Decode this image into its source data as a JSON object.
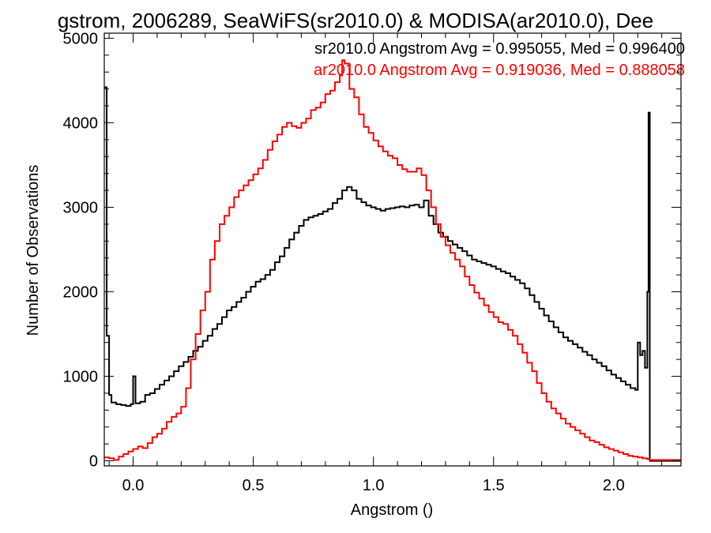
{
  "chart_data": {
    "type": "line",
    "title": "gstrom, 2006289, SeaWiFS(sr2010.0) & MODISA(ar2010.0), Dee",
    "xlabel": "Angstrom ()",
    "ylabel": "Number of Observations",
    "xlim": [
      -0.12,
      2.28
    ],
    "ylim": [
      -60,
      5060
    ],
    "x_ticks": [
      {
        "value": 0.0,
        "label": "0.0"
      },
      {
        "value": 0.5,
        "label": "0.5"
      },
      {
        "value": 1.0,
        "label": "1.0"
      },
      {
        "value": 1.5,
        "label": "1.5"
      },
      {
        "value": 2.0,
        "label": "2.0"
      }
    ],
    "y_ticks": [
      {
        "value": 0,
        "label": "0"
      },
      {
        "value": 1000,
        "label": "1000"
      },
      {
        "value": 2000,
        "label": "2000"
      },
      {
        "value": 3000,
        "label": "3000"
      },
      {
        "value": 4000,
        "label": "4000"
      },
      {
        "value": 5000,
        "label": "5000"
      }
    ],
    "grid": false,
    "legend_position": "top-right",
    "series": [
      {
        "name": "sr2010.0 Angstrom Avg = 0.995055, Med = 0.996400",
        "color": "#000000",
        "step": true,
        "points": [
          [
            -0.12,
            4420
          ],
          [
            -0.11,
            1480
          ],
          [
            -0.1,
            780
          ],
          [
            -0.09,
            690
          ],
          [
            -0.07,
            670
          ],
          [
            -0.05,
            660
          ],
          [
            -0.03,
            650
          ],
          [
            -0.01,
            670
          ],
          [
            0.0,
            1000
          ],
          [
            0.01,
            680
          ],
          [
            0.03,
            700
          ],
          [
            0.05,
            780
          ],
          [
            0.07,
            800
          ],
          [
            0.09,
            850
          ],
          [
            0.11,
            900
          ],
          [
            0.13,
            950
          ],
          [
            0.15,
            1000
          ],
          [
            0.17,
            1060
          ],
          [
            0.19,
            1120
          ],
          [
            0.21,
            1170
          ],
          [
            0.23,
            1230
          ],
          [
            0.25,
            1300
          ],
          [
            0.27,
            1350
          ],
          [
            0.29,
            1420
          ],
          [
            0.31,
            1480
          ],
          [
            0.33,
            1560
          ],
          [
            0.35,
            1620
          ],
          [
            0.37,
            1700
          ],
          [
            0.39,
            1780
          ],
          [
            0.41,
            1820
          ],
          [
            0.43,
            1880
          ],
          [
            0.45,
            1930
          ],
          [
            0.47,
            2000
          ],
          [
            0.49,
            2060
          ],
          [
            0.51,
            2120
          ],
          [
            0.53,
            2150
          ],
          [
            0.55,
            2200
          ],
          [
            0.57,
            2260
          ],
          [
            0.59,
            2350
          ],
          [
            0.61,
            2420
          ],
          [
            0.63,
            2520
          ],
          [
            0.65,
            2620
          ],
          [
            0.67,
            2700
          ],
          [
            0.69,
            2780
          ],
          [
            0.71,
            2850
          ],
          [
            0.73,
            2880
          ],
          [
            0.75,
            2900
          ],
          [
            0.77,
            2920
          ],
          [
            0.79,
            2950
          ],
          [
            0.81,
            2980
          ],
          [
            0.83,
            3050
          ],
          [
            0.85,
            3100
          ],
          [
            0.87,
            3200
          ],
          [
            0.89,
            3240
          ],
          [
            0.91,
            3200
          ],
          [
            0.93,
            3100
          ],
          [
            0.95,
            3060
          ],
          [
            0.97,
            3020
          ],
          [
            0.99,
            3000
          ],
          [
            1.01,
            2980
          ],
          [
            1.03,
            2960
          ],
          [
            1.05,
            2980
          ],
          [
            1.07,
            2990
          ],
          [
            1.09,
            3000
          ],
          [
            1.11,
            3010
          ],
          [
            1.13,
            3000
          ],
          [
            1.15,
            3020
          ],
          [
            1.17,
            3030
          ],
          [
            1.19,
            3000
          ],
          [
            1.21,
            3080
          ],
          [
            1.23,
            2900
          ],
          [
            1.25,
            2800
          ],
          [
            1.27,
            2700
          ],
          [
            1.29,
            2650
          ],
          [
            1.31,
            2600
          ],
          [
            1.33,
            2560
          ],
          [
            1.35,
            2520
          ],
          [
            1.37,
            2480
          ],
          [
            1.39,
            2430
          ],
          [
            1.41,
            2380
          ],
          [
            1.43,
            2360
          ],
          [
            1.45,
            2340
          ],
          [
            1.47,
            2320
          ],
          [
            1.49,
            2300
          ],
          [
            1.51,
            2270
          ],
          [
            1.53,
            2240
          ],
          [
            1.55,
            2220
          ],
          [
            1.57,
            2180
          ],
          [
            1.59,
            2140
          ],
          [
            1.61,
            2100
          ],
          [
            1.63,
            2040
          ],
          [
            1.65,
            1960
          ],
          [
            1.67,
            1880
          ],
          [
            1.69,
            1800
          ],
          [
            1.71,
            1720
          ],
          [
            1.73,
            1650
          ],
          [
            1.75,
            1580
          ],
          [
            1.77,
            1520
          ],
          [
            1.79,
            1460
          ],
          [
            1.81,
            1420
          ],
          [
            1.83,
            1380
          ],
          [
            1.85,
            1340
          ],
          [
            1.87,
            1290
          ],
          [
            1.89,
            1250
          ],
          [
            1.91,
            1200
          ],
          [
            1.93,
            1160
          ],
          [
            1.95,
            1120
          ],
          [
            1.97,
            1070
          ],
          [
            1.99,
            1020
          ],
          [
            2.01,
            980
          ],
          [
            2.03,
            940
          ],
          [
            2.05,
            900
          ],
          [
            2.07,
            860
          ],
          [
            2.09,
            840
          ],
          [
            2.1,
            1400
          ],
          [
            2.11,
            1250
          ],
          [
            2.12,
            1300
          ],
          [
            2.13,
            1100
          ],
          [
            2.14,
            2000
          ],
          [
            2.145,
            4120
          ],
          [
            2.15,
            0
          ],
          [
            2.28,
            0
          ]
        ]
      },
      {
        "name": "ar2010.0 Angstrom Avg = 0.919036, Med = 0.888058",
        "color": "#ff0000",
        "step": true,
        "points": [
          [
            -0.12,
            40
          ],
          [
            -0.1,
            30
          ],
          [
            -0.08,
            10
          ],
          [
            -0.06,
            50
          ],
          [
            -0.04,
            80
          ],
          [
            -0.02,
            110
          ],
          [
            0.0,
            140
          ],
          [
            0.02,
            170
          ],
          [
            0.04,
            150
          ],
          [
            0.06,
            210
          ],
          [
            0.08,
            280
          ],
          [
            0.1,
            320
          ],
          [
            0.12,
            380
          ],
          [
            0.14,
            460
          ],
          [
            0.16,
            520
          ],
          [
            0.18,
            560
          ],
          [
            0.2,
            640
          ],
          [
            0.22,
            860
          ],
          [
            0.24,
            1200
          ],
          [
            0.26,
            1500
          ],
          [
            0.28,
            1780
          ],
          [
            0.3,
            2000
          ],
          [
            0.32,
            2380
          ],
          [
            0.34,
            2600
          ],
          [
            0.36,
            2800
          ],
          [
            0.38,
            2900
          ],
          [
            0.4,
            3000
          ],
          [
            0.42,
            3120
          ],
          [
            0.44,
            3200
          ],
          [
            0.46,
            3260
          ],
          [
            0.48,
            3320
          ],
          [
            0.5,
            3390
          ],
          [
            0.52,
            3460
          ],
          [
            0.54,
            3560
          ],
          [
            0.56,
            3680
          ],
          [
            0.58,
            3780
          ],
          [
            0.6,
            3860
          ],
          [
            0.62,
            3950
          ],
          [
            0.64,
            4000
          ],
          [
            0.66,
            3960
          ],
          [
            0.68,
            3940
          ],
          [
            0.7,
            4000
          ],
          [
            0.72,
            4050
          ],
          [
            0.74,
            4150
          ],
          [
            0.76,
            4180
          ],
          [
            0.78,
            4240
          ],
          [
            0.8,
            4340
          ],
          [
            0.82,
            4380
          ],
          [
            0.84,
            4480
          ],
          [
            0.86,
            4560
          ],
          [
            0.87,
            4740
          ],
          [
            0.88,
            4700
          ],
          [
            0.9,
            4400
          ],
          [
            0.92,
            4300
          ],
          [
            0.94,
            4100
          ],
          [
            0.96,
            3950
          ],
          [
            0.98,
            3880
          ],
          [
            1.0,
            3790
          ],
          [
            1.02,
            3720
          ],
          [
            1.04,
            3660
          ],
          [
            1.06,
            3610
          ],
          [
            1.08,
            3580
          ],
          [
            1.1,
            3500
          ],
          [
            1.12,
            3450
          ],
          [
            1.14,
            3420
          ],
          [
            1.16,
            3420
          ],
          [
            1.18,
            3460
          ],
          [
            1.2,
            3380
          ],
          [
            1.22,
            3200
          ],
          [
            1.24,
            3000
          ],
          [
            1.26,
            2800
          ],
          [
            1.28,
            2650
          ],
          [
            1.3,
            2550
          ],
          [
            1.32,
            2460
          ],
          [
            1.34,
            2380
          ],
          [
            1.36,
            2300
          ],
          [
            1.38,
            2180
          ],
          [
            1.4,
            2080
          ],
          [
            1.42,
            1990
          ],
          [
            1.44,
            1920
          ],
          [
            1.46,
            1840
          ],
          [
            1.48,
            1760
          ],
          [
            1.5,
            1700
          ],
          [
            1.52,
            1640
          ],
          [
            1.54,
            1620
          ],
          [
            1.56,
            1550
          ],
          [
            1.58,
            1480
          ],
          [
            1.6,
            1380
          ],
          [
            1.62,
            1280
          ],
          [
            1.64,
            1160
          ],
          [
            1.66,
            1060
          ],
          [
            1.68,
            920
          ],
          [
            1.7,
            800
          ],
          [
            1.72,
            700
          ],
          [
            1.74,
            620
          ],
          [
            1.76,
            560
          ],
          [
            1.78,
            500
          ],
          [
            1.8,
            440
          ],
          [
            1.82,
            400
          ],
          [
            1.84,
            360
          ],
          [
            1.86,
            320
          ],
          [
            1.88,
            280
          ],
          [
            1.9,
            240
          ],
          [
            1.92,
            220
          ],
          [
            1.94,
            190
          ],
          [
            1.96,
            160
          ],
          [
            1.98,
            140
          ],
          [
            2.0,
            120
          ],
          [
            2.02,
            100
          ],
          [
            2.04,
            80
          ],
          [
            2.06,
            60
          ],
          [
            2.08,
            50
          ],
          [
            2.1,
            40
          ],
          [
            2.12,
            30
          ],
          [
            2.14,
            20
          ],
          [
            2.15,
            10
          ],
          [
            2.28,
            10
          ]
        ]
      }
    ]
  }
}
